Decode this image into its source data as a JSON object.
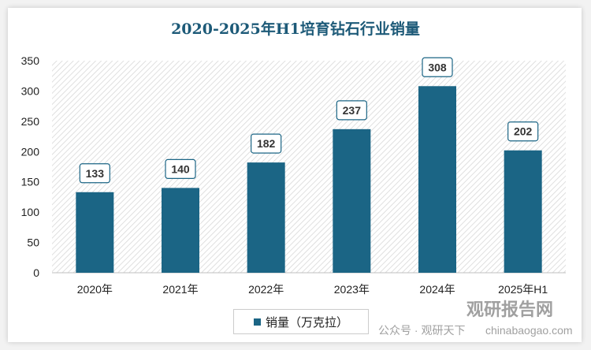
{
  "chart_data": {
    "type": "bar",
    "title": "2020-2025年H1培育钻石行业销量",
    "categories": [
      "2020年",
      "2021年",
      "2022年",
      "2023年",
      "2024年",
      "2025年H1"
    ],
    "series": [
      {
        "name": "销量（万克拉）",
        "values": [
          133,
          140,
          182,
          237,
          308,
          202
        ]
      }
    ],
    "yticks": [
      0,
      50,
      100,
      150,
      200,
      250,
      300,
      350
    ],
    "ylim": [
      0,
      350
    ],
    "grid": false,
    "legend": "bottom",
    "bar_color": "#1b6585",
    "data_labels": true
  },
  "watermark": {
    "brand": "观研报告网",
    "url": "chinabaogao.com",
    "sub": "公众号 · 观研天下"
  }
}
